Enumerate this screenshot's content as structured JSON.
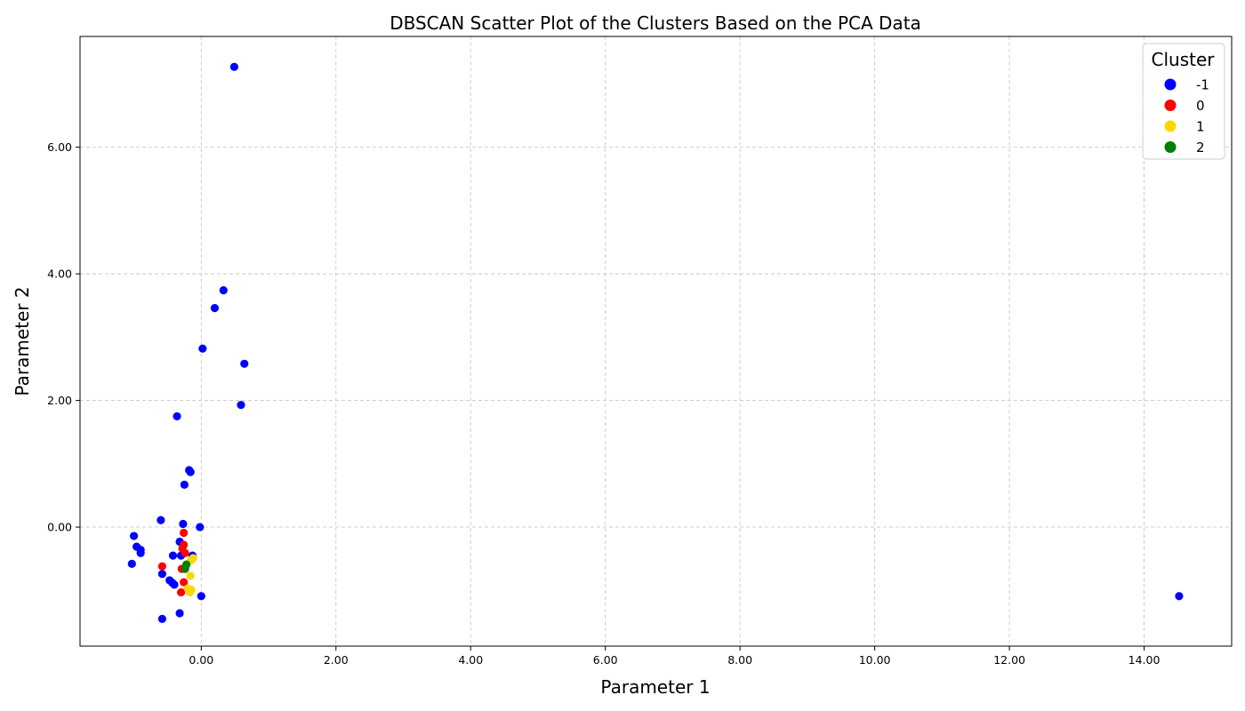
{
  "chart_data": {
    "type": "scatter",
    "title": "DBSCAN Scatter Plot of the Clusters Based on the PCA Data",
    "xlabel": "Parameter 1",
    "ylabel": "Parameter 2",
    "xlim": [
      -1.8,
      15.3
    ],
    "ylim": [
      -1.88,
      7.75
    ],
    "xticks": [
      0,
      2,
      4,
      6,
      8,
      10,
      12,
      14
    ],
    "yticks": [
      0,
      2,
      4,
      6
    ],
    "xtick_labels": [
      "0.00",
      "2.00",
      "4.00",
      "6.00",
      "8.00",
      "10.00",
      "12.00",
      "14.00"
    ],
    "ytick_labels": [
      "0.00",
      "2.00",
      "4.00",
      "6.00"
    ],
    "grid": true,
    "legend": {
      "title": "Cluster",
      "placement": "top-right"
    },
    "series": [
      {
        "name": "-1",
        "color": "#0000ff",
        "points": [
          [
            0.49,
            7.27
          ],
          [
            0.33,
            3.74
          ],
          [
            0.2,
            3.46
          ],
          [
            0.02,
            2.82
          ],
          [
            0.64,
            2.58
          ],
          [
            0.59,
            1.93
          ],
          [
            -0.36,
            1.75
          ],
          [
            -0.18,
            0.9
          ],
          [
            -0.16,
            0.87
          ],
          [
            -0.25,
            0.67
          ],
          [
            -0.6,
            0.11
          ],
          [
            -0.27,
            0.05
          ],
          [
            -0.02,
            0.0
          ],
          [
            -1.0,
            -0.14
          ],
          [
            -0.96,
            -0.31
          ],
          [
            -0.9,
            -0.36
          ],
          [
            -0.9,
            -0.41
          ],
          [
            -1.03,
            -0.58
          ],
          [
            -0.42,
            -0.45
          ],
          [
            -0.32,
            -0.23
          ],
          [
            -0.3,
            -0.45
          ],
          [
            -0.13,
            -0.45
          ],
          [
            -0.58,
            -0.74
          ],
          [
            -0.47,
            -0.84
          ],
          [
            -0.43,
            -0.88
          ],
          [
            -0.4,
            -0.91
          ],
          [
            0.0,
            -1.09
          ],
          [
            -0.32,
            -1.36
          ],
          [
            -0.58,
            -1.45
          ],
          [
            14.52,
            -1.09
          ]
        ]
      },
      {
        "name": "0",
        "color": "#ff0000",
        "points": [
          [
            -0.26,
            -0.09
          ],
          [
            -0.26,
            -0.28
          ],
          [
            -0.28,
            -0.34
          ],
          [
            -0.24,
            -0.41
          ],
          [
            -0.58,
            -0.62
          ],
          [
            -0.29,
            -0.66
          ],
          [
            -0.26,
            -0.87
          ],
          [
            -0.3,
            -1.03
          ]
        ]
      },
      {
        "name": "1",
        "color": "#ffd700",
        "points": [
          [
            -0.12,
            -0.49
          ],
          [
            -0.15,
            -0.52
          ],
          [
            -0.16,
            -0.77
          ],
          [
            -0.2,
            -0.97
          ],
          [
            -0.15,
            -0.99
          ],
          [
            -0.17,
            -1.03
          ]
        ]
      },
      {
        "name": "2",
        "color": "#008000",
        "points": [
          [
            -0.22,
            -0.59
          ],
          [
            -0.24,
            -0.66
          ]
        ]
      }
    ]
  }
}
